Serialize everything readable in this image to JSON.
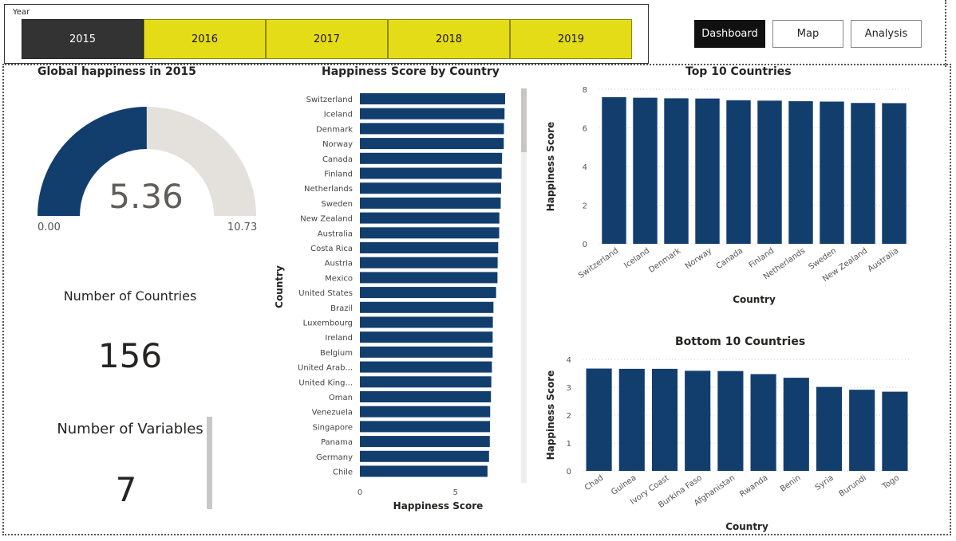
{
  "slicer": {
    "title": "Year",
    "years": [
      "2015",
      "2016",
      "2017",
      "2018",
      "2019"
    ],
    "selected": "2015"
  },
  "nav": {
    "dashboard": "Dashboard",
    "map": "Map",
    "analysis": "Analysis"
  },
  "colors": {
    "bar": "#123e6e",
    "gauge_track": "#e4e0dc",
    "slicer_yellow": "#e5dc18",
    "slicer_selected": "#333333"
  },
  "gauge": {
    "title": "Global happiness in 2015",
    "value": 5.36,
    "value_label": "5.36",
    "min_label": "0.00",
    "max_label": "10.73",
    "min": 0,
    "max": 10.73
  },
  "cards": {
    "countries_title": "Number of Countries",
    "countries_value": "156",
    "variables_title": "Number of Variables",
    "variables_value": "7"
  },
  "chart_data": [
    {
      "id": "by_country",
      "type": "bar",
      "orientation": "horizontal",
      "title": "Happiness Score by Country",
      "xlabel": "Happiness Score",
      "ylabel": "Country",
      "xlim": [
        0,
        7.8
      ],
      "xticks": [
        0,
        5
      ],
      "categories": [
        "Switzerland",
        "Iceland",
        "Denmark",
        "Norway",
        "Canada",
        "Finland",
        "Netherlands",
        "Sweden",
        "New Zealand",
        "Australia",
        "Costa Rica",
        "Austria",
        "Mexico",
        "United States",
        "Brazil",
        "Luxembourg",
        "Ireland",
        "Belgium",
        "United Arab...",
        "United King...",
        "Oman",
        "Venezuela",
        "Singapore",
        "Panama",
        "Germany",
        "Chile"
      ],
      "values": [
        7.59,
        7.56,
        7.53,
        7.52,
        7.43,
        7.41,
        7.38,
        7.36,
        7.29,
        7.28,
        7.23,
        7.2,
        7.19,
        7.12,
        6.98,
        6.95,
        6.94,
        6.94,
        6.9,
        6.87,
        6.85,
        6.81,
        6.8,
        6.79,
        6.75,
        6.67
      ]
    },
    {
      "id": "top10",
      "type": "bar",
      "title": "Top 10 Countries",
      "xlabel": "Country",
      "ylabel": "Happiness Score",
      "ylim": [
        0,
        8
      ],
      "yticks": [
        0,
        2,
        4,
        6,
        8
      ],
      "categories": [
        "Switzerland",
        "Iceland",
        "Denmark",
        "Norway",
        "Canada",
        "Finland",
        "Netherlands",
        "Sweden",
        "New Zealand",
        "Australia"
      ],
      "values": [
        7.59,
        7.56,
        7.53,
        7.52,
        7.43,
        7.41,
        7.38,
        7.36,
        7.29,
        7.28
      ]
    },
    {
      "id": "bottom10",
      "type": "bar",
      "title": "Bottom 10 Countries",
      "xlabel": "Country",
      "ylabel": "Happiness Score",
      "ylim": [
        0,
        4
      ],
      "yticks": [
        0,
        1,
        2,
        3,
        4
      ],
      "categories": [
        "Chad",
        "Guinea",
        "Ivory Coast",
        "Burkina Faso",
        "Afghanistan",
        "Rwanda",
        "Benin",
        "Syria",
        "Burundi",
        "Togo"
      ],
      "values": [
        3.67,
        3.66,
        3.66,
        3.59,
        3.58,
        3.47,
        3.34,
        3.01,
        2.91,
        2.84
      ]
    }
  ]
}
